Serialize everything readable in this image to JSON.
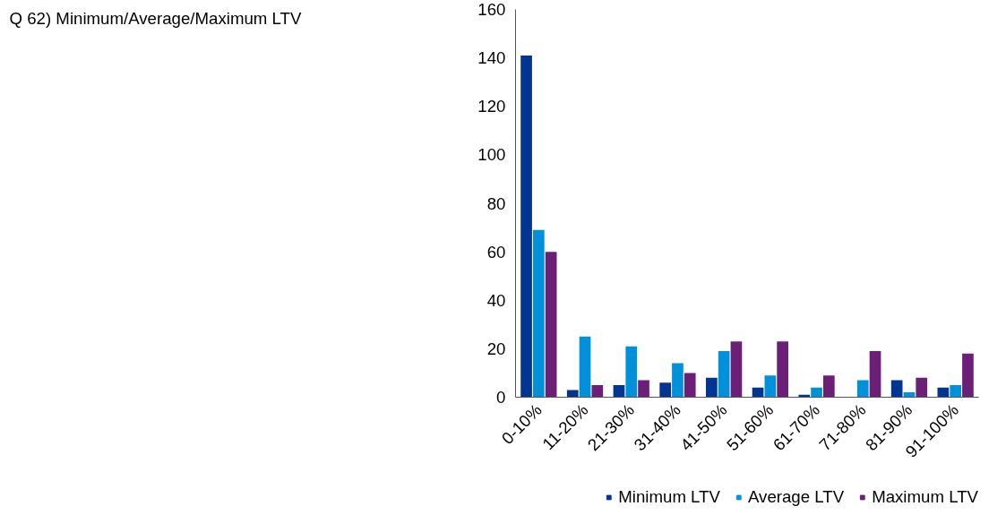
{
  "chart_data": {
    "type": "bar",
    "title": "Q 62) Minimum/Average/Maximum  LTV",
    "categories": [
      "0-10%",
      "11-20%",
      "21-30%",
      "31-40%",
      "41-50%",
      "51-60%",
      "61-70%",
      "71-80%",
      "81-90%",
      "91-100%"
    ],
    "series": [
      {
        "name": "Minimum LTV",
        "color": "#003591",
        "values": [
          141,
          3,
          5,
          6,
          8,
          4,
          1,
          0,
          7,
          4
        ]
      },
      {
        "name": "Average LTV",
        "color": "#0091da",
        "values": [
          69,
          25,
          21,
          14,
          19,
          9,
          4,
          7,
          2,
          5
        ]
      },
      {
        "name": "Maximum LTV",
        "color": "#6c1f76",
        "values": [
          60,
          5,
          7,
          10,
          23,
          23,
          9,
          19,
          8,
          18
        ]
      }
    ],
    "ylim": [
      0,
      160
    ],
    "yticks": [
      0,
      20,
      40,
      60,
      80,
      100,
      120,
      140,
      160
    ],
    "grid": false,
    "legend": "bottom"
  }
}
